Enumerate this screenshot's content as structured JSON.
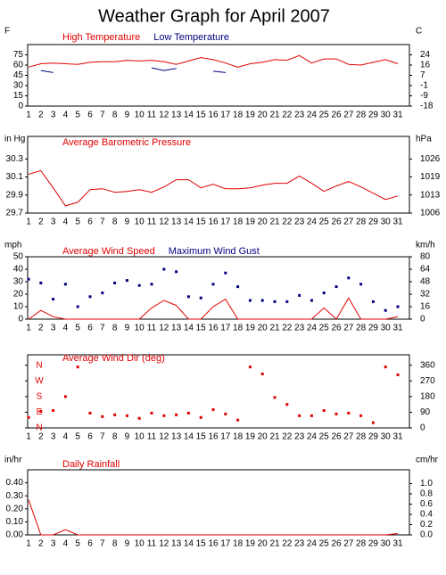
{
  "title": "Weather Graph for April 2007",
  "chart_data": [
    {
      "type": "line",
      "y_label": "F",
      "y2_label": "C",
      "categories": [
        "1",
        "2",
        "3",
        "4",
        "5",
        "6",
        "7",
        "8",
        "9",
        "10",
        "11",
        "12",
        "13",
        "14",
        "15",
        "16",
        "17",
        "18",
        "19",
        "20",
        "21",
        "22",
        "23",
        "24",
        "25",
        "26",
        "27",
        "28",
        "29",
        "30",
        "31"
      ],
      "series": [
        {
          "name": "High Temperature",
          "color": "#e00000",
          "type": "line",
          "values": [
            57,
            62,
            63,
            62,
            61,
            64,
            65,
            65,
            67,
            66,
            67,
            65,
            61,
            66,
            71,
            68,
            63,
            57,
            62,
            64,
            68,
            67,
            74,
            63,
            69,
            69,
            61,
            60,
            64,
            68,
            62
          ]
        },
        {
          "name": "Low Temperature",
          "color": "#000080",
          "type": "line",
          "values": [
            null,
            52,
            49,
            null,
            null,
            null,
            null,
            null,
            null,
            null,
            56,
            52,
            55,
            null,
            null,
            51,
            49,
            null,
            null,
            null,
            null,
            null,
            null,
            null,
            null,
            null,
            null,
            null,
            null,
            null,
            null
          ]
        }
      ],
      "ylim": [
        0,
        90
      ],
      "yticks": [
        75,
        60,
        45,
        30,
        15,
        0
      ],
      "y2lim": [
        -17.78,
        32.22
      ],
      "y2ticks": [
        {
          "value": 23.89,
          "label": "24"
        },
        {
          "value": 15.56,
          "label": "16"
        },
        {
          "value": 7.22,
          "label": "7"
        },
        {
          "value": -1.11,
          "label": "-1"
        },
        {
          "value": -9.44,
          "label": "-9"
        },
        {
          "value": -17.78,
          "label": "-18"
        }
      ]
    },
    {
      "type": "line",
      "y_label": "in Hg",
      "y2_label": "hPa",
      "categories": [
        "1",
        "2",
        "3",
        "4",
        "5",
        "6",
        "7",
        "8",
        "9",
        "10",
        "11",
        "12",
        "13",
        "14",
        "15",
        "16",
        "17",
        "18",
        "19",
        "20",
        "21",
        "22",
        "23",
        "24",
        "25",
        "26",
        "27",
        "28",
        "29",
        "30",
        "31"
      ],
      "series": [
        {
          "name": "Average Barometric Pressure",
          "color": "#e00000",
          "type": "line",
          "values": [
            30.13,
            30.17,
            29.98,
            29.78,
            29.82,
            29.96,
            29.97,
            29.93,
            29.94,
            29.96,
            29.93,
            29.99,
            30.07,
            30.07,
            29.98,
            30.02,
            29.97,
            29.97,
            29.98,
            30.01,
            30.03,
            30.03,
            30.11,
            30.03,
            29.94,
            30.0,
            30.05,
            29.99,
            29.92,
            29.85,
            29.89
          ]
        }
      ],
      "ylim": [
        29.7,
        30.55
      ],
      "yticks": [
        30.3,
        30.1,
        29.9,
        29.7
      ],
      "y2lim": [
        1005.7,
        1034.5
      ],
      "y2ticks": [
        {
          "value": 1026.0,
          "label": "1026"
        },
        {
          "value": 1019.3,
          "label": "1019"
        },
        {
          "value": 1012.5,
          "label": "1013"
        },
        {
          "value": 1005.7,
          "label": "1006"
        }
      ]
    },
    {
      "type": "line",
      "y_label": "mph",
      "y2_label": "km/h",
      "categories": [
        "1",
        "2",
        "3",
        "4",
        "5",
        "6",
        "7",
        "8",
        "9",
        "10",
        "11",
        "12",
        "13",
        "14",
        "15",
        "16",
        "17",
        "18",
        "19",
        "20",
        "21",
        "22",
        "23",
        "24",
        "25",
        "26",
        "27",
        "28",
        "29",
        "30",
        "31"
      ],
      "series": [
        {
          "name": "Average Wind Speed",
          "color": "#e00000",
          "type": "line",
          "values": [
            0,
            7,
            2,
            0,
            0,
            0,
            0,
            0,
            0,
            0,
            9,
            15,
            11,
            0,
            0,
            10,
            16,
            0,
            0,
            0,
            0,
            0,
            0,
            0,
            9,
            0,
            17,
            0,
            0,
            0,
            2
          ]
        },
        {
          "name": "Maximum Wind Gust",
          "color": "#000080",
          "type": "scatter",
          "values": [
            32,
            29,
            16,
            28,
            10,
            18,
            21,
            29,
            31,
            27,
            28,
            40,
            38,
            18,
            17,
            28,
            37,
            26,
            15,
            15,
            14,
            14,
            19,
            15,
            21,
            26,
            33,
            28,
            14,
            7,
            10
          ]
        }
      ],
      "ylim": [
        0,
        50
      ],
      "yticks": [
        50,
        40,
        30,
        20,
        10,
        0
      ],
      "y2lim": [
        0,
        80.47
      ],
      "y2ticks": [
        {
          "value": 80.47,
          "label": "80"
        },
        {
          "value": 64.37,
          "label": "64"
        },
        {
          "value": 48.28,
          "label": "48"
        },
        {
          "value": 32.19,
          "label": "32"
        },
        {
          "value": 16.09,
          "label": "16"
        },
        0
      ]
    },
    {
      "type": "scatter",
      "categories": [
        "1",
        "2",
        "3",
        "4",
        "5",
        "6",
        "7",
        "8",
        "9",
        "10",
        "11",
        "12",
        "13",
        "14",
        "15",
        "16",
        "17",
        "18",
        "19",
        "20",
        "21",
        "22",
        "23",
        "24",
        "25",
        "26",
        "27",
        "28",
        "29",
        "30",
        "31"
      ],
      "series": [
        {
          "name": "Average Wind Dir (deg)",
          "color": "#e00000",
          "type": "scatter",
          "values": [
            60,
            95,
            100,
            180,
            350,
            85,
            65,
            75,
            70,
            55,
            85,
            70,
            75,
            85,
            60,
            105,
            80,
            45,
            350,
            310,
            175,
            135,
            70,
            70,
            100,
            80,
            85,
            70,
            30,
            350,
            305
          ]
        }
      ],
      "ylim": [
        0,
        420
      ],
      "yticks": [
        {
          "value": 360,
          "label": "N"
        },
        {
          "value": 270,
          "label": "W"
        },
        {
          "value": 180,
          "label": "S"
        },
        {
          "value": 90,
          "label": "E"
        },
        {
          "value": 0,
          "label": "N"
        }
      ],
      "ytick_color": "#e00000",
      "ytick_position": "inside",
      "y2lim": [
        0,
        420
      ],
      "y2ticks": [
        360,
        270,
        180,
        90,
        0
      ]
    },
    {
      "type": "line",
      "y_label": "in/hr",
      "y2_label": "cm/hr",
      "categories": [
        "1",
        "2",
        "3",
        "4",
        "5",
        "6",
        "7",
        "8",
        "9",
        "10",
        "11",
        "12",
        "13",
        "14",
        "15",
        "16",
        "17",
        "18",
        "19",
        "20",
        "21",
        "22",
        "23",
        "24",
        "25",
        "26",
        "27",
        "28",
        "29",
        "30",
        "31"
      ],
      "series": [
        {
          "name": "Daily Rainfall",
          "color": "#e00000",
          "type": "line",
          "values": [
            0.27,
            0,
            0,
            0.04,
            0,
            0,
            0,
            0,
            0,
            0,
            0,
            0,
            0,
            0,
            0,
            0,
            0,
            0,
            0,
            0,
            0,
            0,
            0,
            0,
            0,
            0,
            0,
            0,
            0,
            0,
            0.01
          ]
        }
      ],
      "ylim": [
        0,
        0.5
      ],
      "yticks": [
        {
          "value": 0.4,
          "label": "0.40"
        },
        {
          "value": 0.3,
          "label": "0.30"
        },
        {
          "value": 0.2,
          "label": "0.20"
        },
        {
          "value": 0.1,
          "label": "0.10"
        },
        {
          "value": 0,
          "label": "0.00"
        }
      ],
      "y2lim": [
        0,
        1.27
      ],
      "y2ticks": [
        {
          "value": 1,
          "label": "1.0"
        },
        {
          "value": 0.8,
          "label": "0.8"
        },
        {
          "value": 0.6,
          "label": "0.6"
        },
        {
          "value": 0.4,
          "label": "0.4"
        },
        {
          "value": 0.2,
          "label": "0.2"
        },
        {
          "value": 0,
          "label": "0.0"
        }
      ]
    }
  ]
}
